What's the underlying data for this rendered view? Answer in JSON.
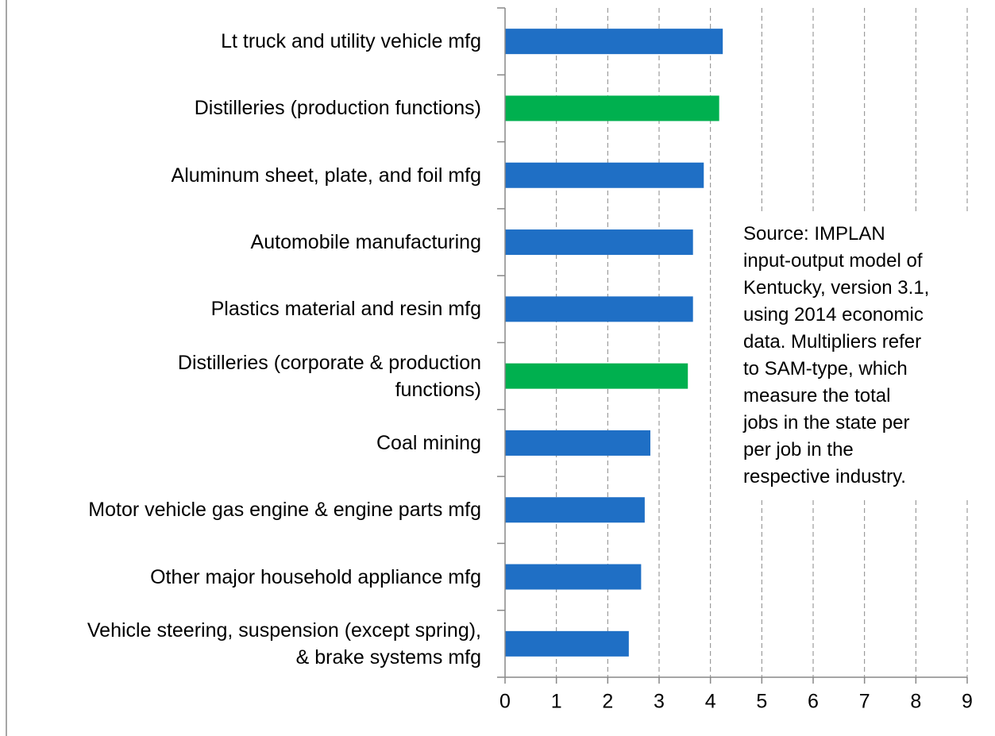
{
  "chart_data": {
    "type": "barh",
    "categories": [
      "Lt truck and utility vehicle mfg",
      "Distilleries (production functions)",
      "Aluminum sheet, plate, and foil mfg",
      "Automobile manufacturing",
      "Plastics material and resin mfg",
      "Distilleries (corporate & production\nfunctions)",
      "Coal mining",
      "Motor vehicle gas engine & engine parts mfg",
      "Other major household appliance mfg",
      "Vehicle steering, suspension (except spring),\n& brake systems mfg"
    ],
    "values": [
      4.24,
      4.17,
      3.87,
      3.66,
      3.66,
      3.56,
      2.83,
      2.72,
      2.65,
      2.41
    ],
    "colors": [
      "#1f6fc5",
      "#00b04f",
      "#1f6fc5",
      "#1f6fc5",
      "#1f6fc5",
      "#00b04f",
      "#1f6fc5",
      "#1f6fc5",
      "#1f6fc5",
      "#1f6fc5"
    ],
    "xlim": [
      0,
      9
    ],
    "xticks": [
      0,
      1,
      2,
      3,
      4,
      5,
      6,
      7,
      8,
      9
    ],
    "grid": true,
    "annotation": "Source: IMPLAN\ninput-output model of\nKentucky, version 3.1,\nusing 2014 economic\ndata. Multipliers refer\nto SAM-type, which\nmeasure the total\njobs in the state per\nper job in the\nrespective industry."
  }
}
